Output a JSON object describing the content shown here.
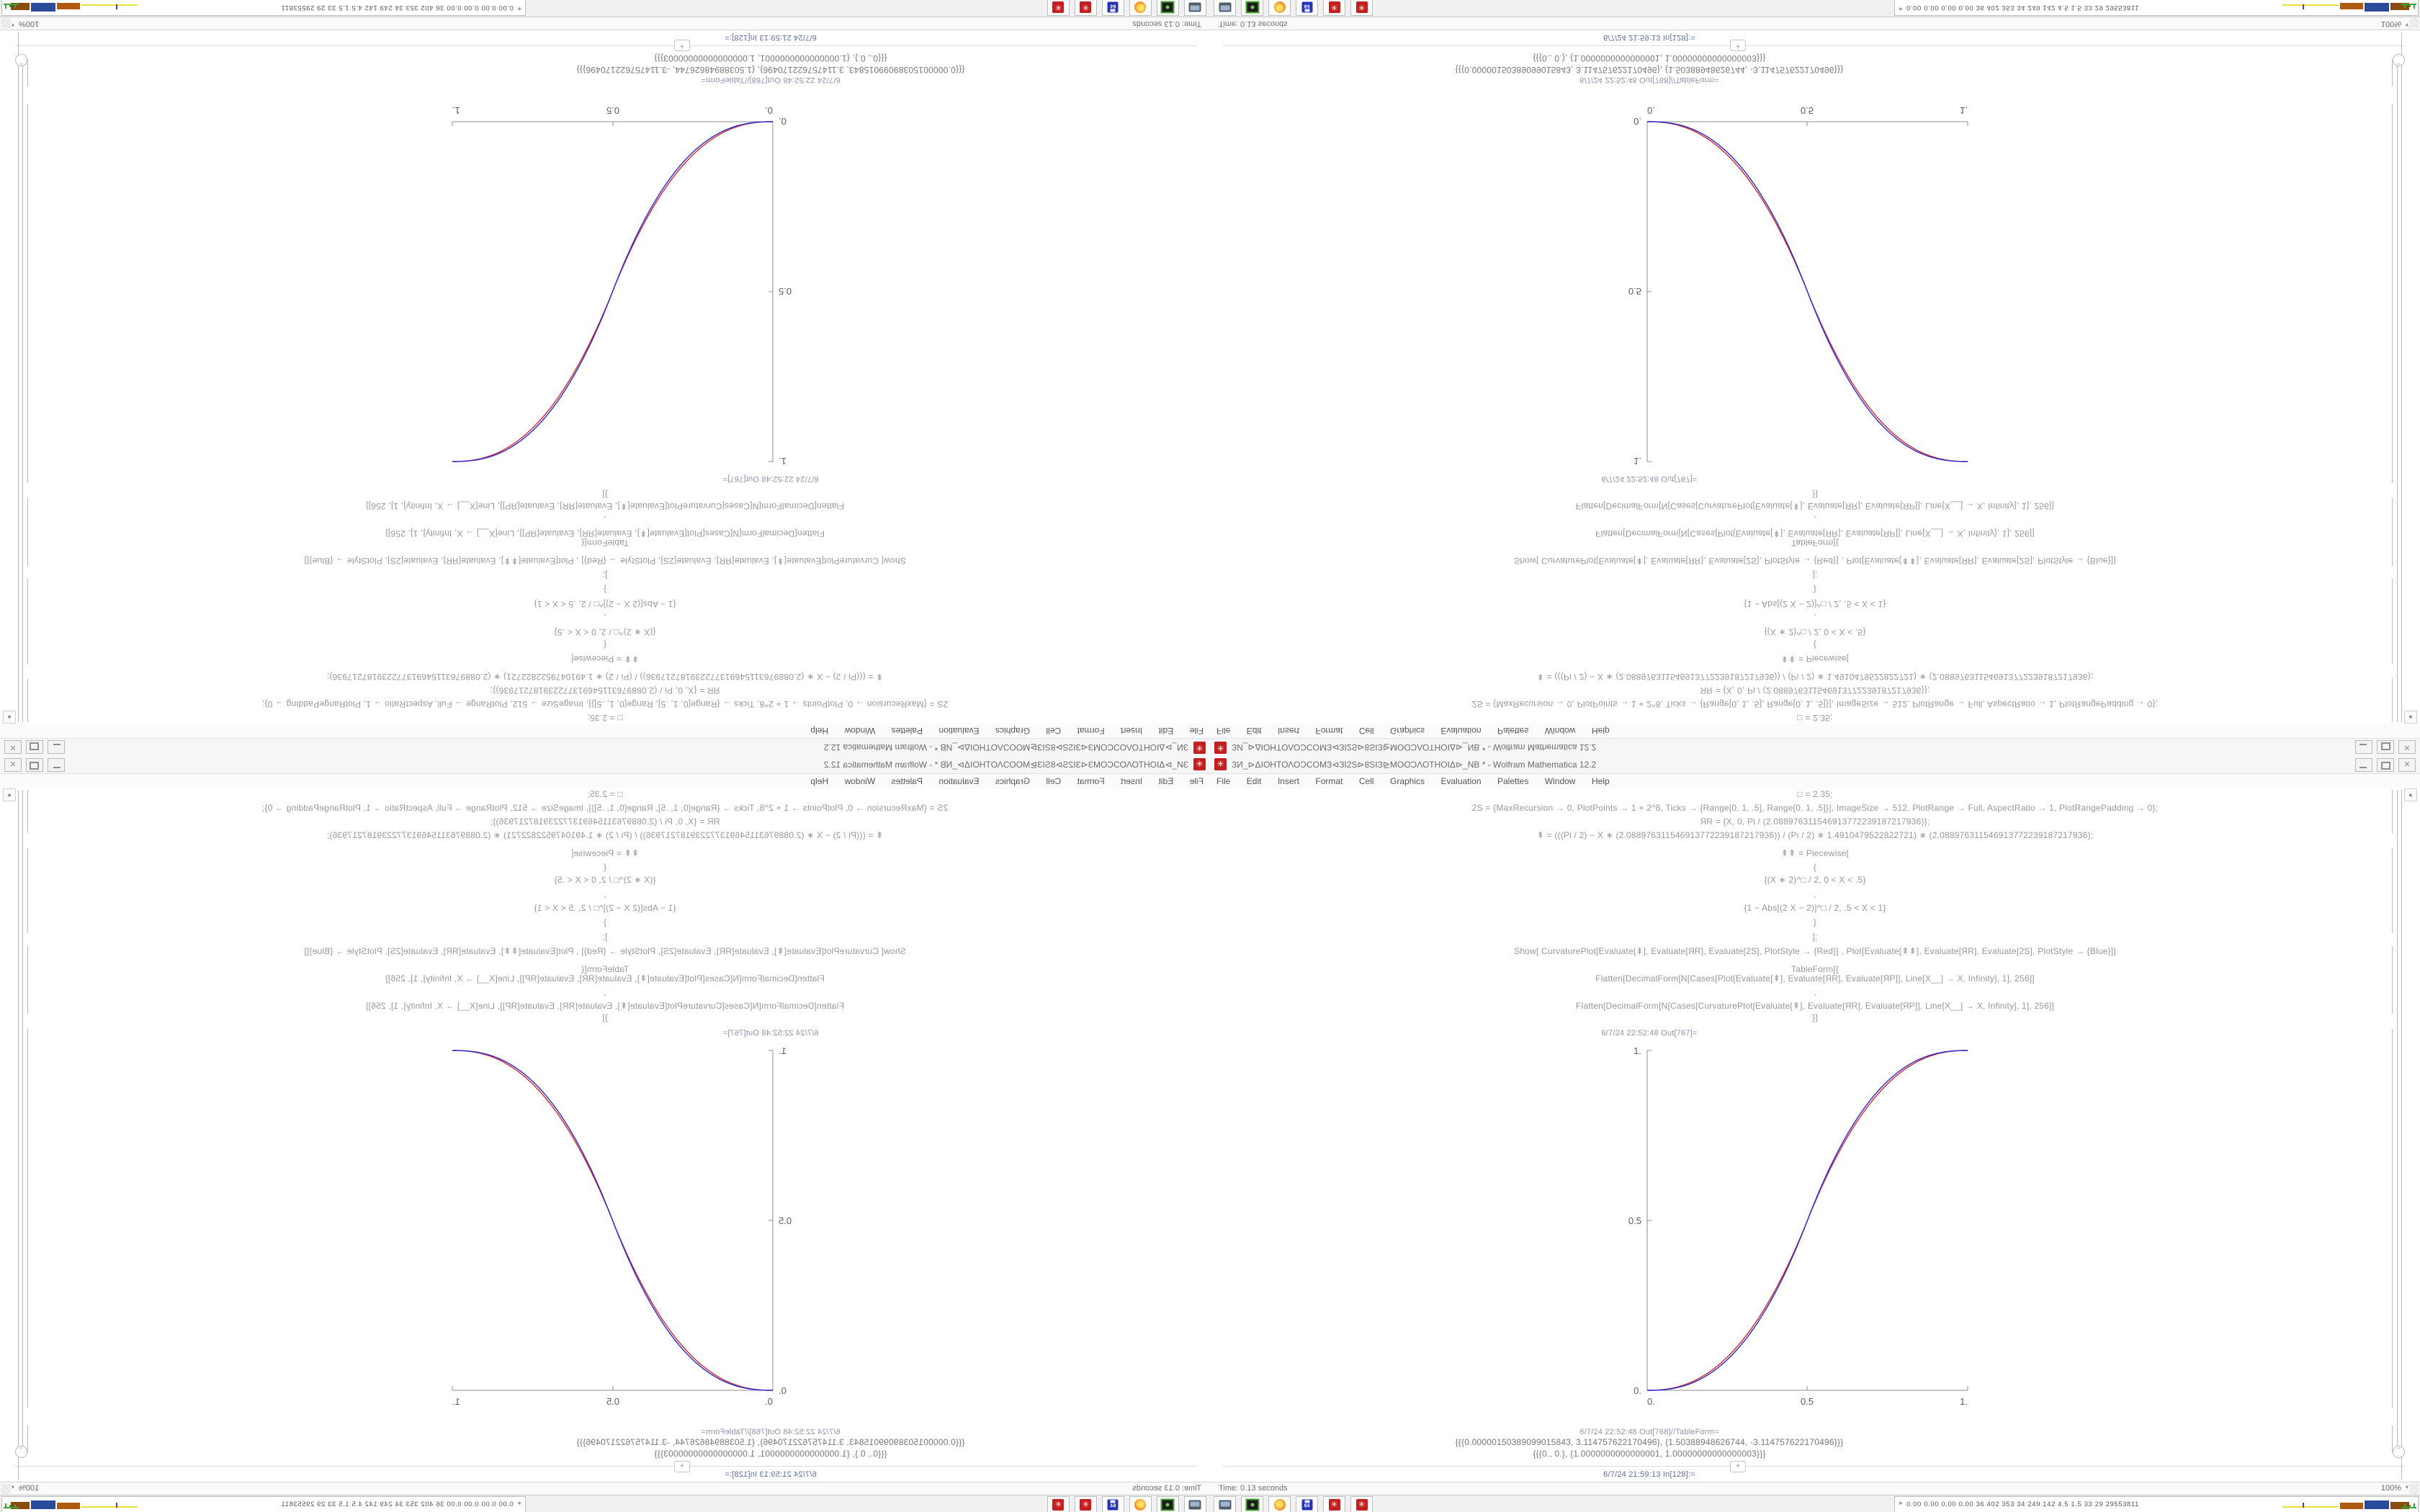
{
  "window": {
    "title": "ЗИ_⊳ΔΙΟΗΤΟΛΟϽCOMЗ⊲ЗΙ2S⊳8SΙЗ⊵MOOϽΛΟΤΗΟΙΔ⊳_NB * - Wolfram Mathematica 12.2",
    "menu": [
      "File",
      "Edit",
      "Insert",
      "Format",
      "Cell",
      "Graphics",
      "Evaluation",
      "Palettes",
      "Window",
      "Help"
    ],
    "code1": {
      "l1": "□ = 2.35;",
      "l2": "2S = {MaxRecursion → 0, PlotPoints → 1 + 2^8, Ticks → {Range[0, 1, .5], Range[0, 1, .5]}], ImageSize → 512, PlotRange → Full, AspectRatio → 1, PlotRangePadding → 0};",
      "l3": "ЯR = {X, 0, Pi / (2.088976311546913772239187217936)};",
      "l4": "⇞ = (((Pi / 2) − X ∗ (2.088976311546913772239187217936)) / (Pi / 2) ∗ 1.4910479522822721) ∗ (2.088976311546913772239187217936);"
    },
    "code2": {
      "l1": "⇞⇞ = Piecewise[",
      "l2": "{",
      "l3": "{(X ∗ 2)^□ / 2, 0 < X < .5}",
      "l4": ",",
      "l5": "{1 − Abs[(2 X − 2)]^□ / 2, .5 < X < 1}",
      "l6": "}",
      "l7": "];"
    },
    "code3": {
      "l1": "Show[  CurvaturePlot[Evaluate[⇞], Evaluate[ЯR], Evaluate[2S], PlotStyle → {Red}]  ,  Plot[Evaluate[⇞⇞], Evaluate[ЯR], Evaluate[2S],  PlotStyle → {Blue}]]",
      "l2": "TableForm[{",
      "l3": "Flatten[DecimalForm[N[Cases[Plot[Evaluate[⇞], Evaluate[ЯR], Evaluate[ЯΡ]], Line[X__] → X, Infinity], 1], 256]]",
      "l4": ",",
      "l5": "Flatten[DecimalForm[N[Cases[CurvaturePlot[Evaluate[⇞], Evaluate[ЯR], Evaluate[ЯΡ]], Line[X__] → X, Infinity], 1], 256]]",
      "l6": "}]"
    },
    "out_plot_label": "6/7/24 22:52:48 Out[767]=",
    "out_table_label": "6/7/24 22:52:48 Out[768]//TableForm=",
    "table_rows": {
      "r1": "{{{0.00000150389099015843, 3.114757622170496}, {1.50388948626744, -3.114757622170496}}}",
      "r2": "{{{0., 0.}, {1.0000000000000001, 1.00000000000000003}}}"
    },
    "in_prompt_label": "6/7/24 21:59:13 In[128]:=",
    "plot": {
      "xticks": [
        "0.",
        "0.5",
        "1."
      ],
      "yticks": [
        "0.",
        "0.5",
        "1."
      ]
    },
    "status": {
      "time": "Time: 0.13 seconds",
      "zoom": "100%"
    },
    "taskbar": {
      "icons": [
        "screenshot-tool",
        "screen-recorder",
        "firefox",
        "c64-emulator",
        "mathematica-1",
        "mathematica-2"
      ],
      "floppy_label": "64",
      "tray_text": "0.00 0.00 0.00 0.00   36   402 353   34   249 142   4.5   1.5   33   29   29553811"
    }
  },
  "icons": {
    "plus": "+",
    "caret_down": "▾",
    "scroll_up": "▲",
    "chevron_up": "ˆ",
    "tray_marker": "✶",
    "star_burst": "✳",
    "close": "✕"
  },
  "colors": {
    "curve_red": "#d42a2a",
    "curve_blue": "#2a2ad4",
    "mathematica_icon_red": "#c41e1e",
    "axis_gray": "#8f8f8f",
    "code_gray": "#979797",
    "cell_label_blue": "#5e6f9e"
  },
  "chart_data": {
    "type": "line",
    "title": "",
    "xlabel": "",
    "ylabel": "",
    "xlim": [
      0,
      1
    ],
    "ylim": [
      0,
      1
    ],
    "xticks": [
      0,
      0.5,
      1
    ],
    "yticks": [
      0,
      0.5,
      1
    ],
    "grid": false,
    "legend": "none",
    "x": [
      0,
      0.1,
      0.2,
      0.3,
      0.4,
      0.5,
      0.6,
      0.7,
      0.8,
      0.9,
      1
    ],
    "series": [
      {
        "name": "CurvaturePlot (Red)",
        "color": "#d42a2a",
        "values": [
          0,
          0.0114,
          0.0579,
          0.1504,
          0.2959,
          0.5,
          0.7041,
          0.8496,
          0.9421,
          0.9886,
          1
        ]
      },
      {
        "name": "Plot (Blue)",
        "color": "#2a2ad4",
        "values": [
          0,
          0.0097,
          0.053,
          0.143,
          0.289,
          0.5,
          0.711,
          0.857,
          0.947,
          0.9903,
          1
        ]
      }
    ],
    "annotations": [
      "6/7/24 22:52:48 Out[767]="
    ]
  }
}
